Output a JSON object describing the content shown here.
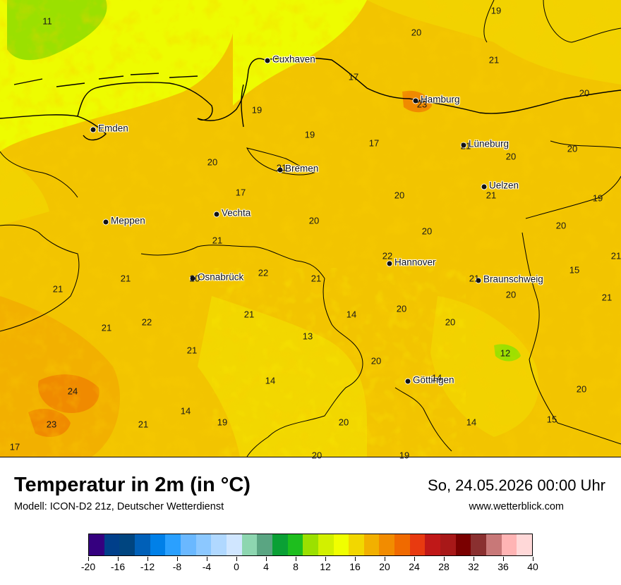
{
  "title": "Temperatur in 2m (in °C)",
  "model": "Modell: ICON-D2 21z, Deutscher Wetterdienst",
  "datetime": "So, 24.05.2026 00:00 Uhr",
  "website": "www.wetterblick.com",
  "cities": [
    {
      "name": "Cuxhaven"
    },
    {
      "name": "Hamburg"
    },
    {
      "name": "Emden"
    },
    {
      "name": "Lüneburg"
    },
    {
      "name": "Bremen"
    },
    {
      "name": "Uelzen"
    },
    {
      "name": "Vechta"
    },
    {
      "name": "Meppen"
    },
    {
      "name": "Hannover"
    },
    {
      "name": "Osnabrück"
    },
    {
      "name": "Braunschweig"
    },
    {
      "name": "Göttingen"
    }
  ],
  "values": [
    "11",
    "19",
    "20",
    "21",
    "17",
    "20",
    "23",
    "19",
    "19",
    "17",
    "21",
    "20",
    "20",
    "20",
    "21",
    "17",
    "20",
    "21",
    "19",
    "20",
    "20",
    "21",
    "20",
    "22",
    "21",
    "22",
    "21",
    "21",
    "20",
    "15",
    "21",
    "20",
    "21",
    "22",
    "21",
    "14",
    "20",
    "20",
    "21",
    "13",
    "12",
    "21",
    "20",
    "20",
    "24",
    "14",
    "14",
    "21",
    "14",
    "19",
    "15",
    "23",
    "21",
    "20",
    "17",
    "20",
    "19",
    "14"
  ],
  "legend": {
    "colors": [
      "#35007f",
      "#003f8a",
      "#004580",
      "#0060b8",
      "#0080e8",
      "#2aa0ff",
      "#6ab8ff",
      "#8cc8ff",
      "#b0d8ff",
      "#d0e6ff",
      "#8dd6b0",
      "#5aa582",
      "#0aa035",
      "#1ebe1e",
      "#9be000",
      "#d2f000",
      "#f0ff00",
      "#f2d700",
      "#f2b000",
      "#f28c00",
      "#f06a00",
      "#e83a10",
      "#c01818",
      "#a81818",
      "#7a0000",
      "#8a3030",
      "#c87878",
      "#ffb4b4",
      "#ffd8d8"
    ],
    "tick_labels": [
      "-20",
      "-16",
      "-12",
      "-8",
      "-4",
      "0",
      "4",
      "8",
      "12",
      "16",
      "20",
      "24",
      "28",
      "32",
      "36",
      "40"
    ]
  }
}
